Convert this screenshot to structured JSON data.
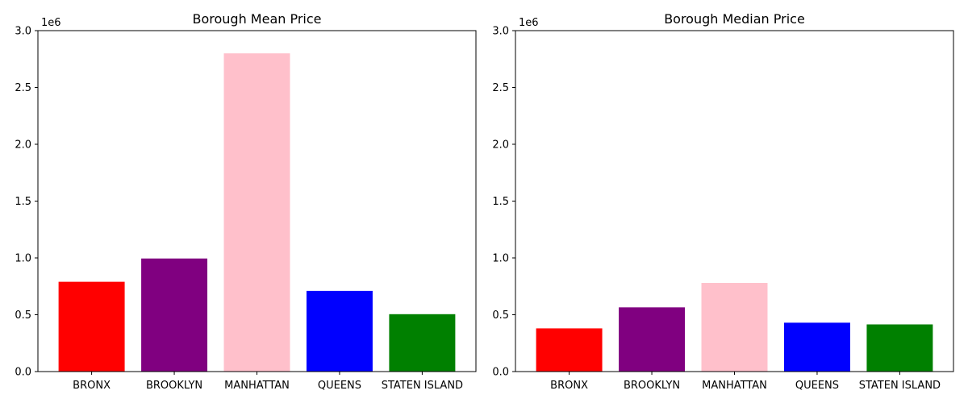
{
  "chart_data": [
    {
      "type": "bar",
      "title": "Borough Mean Price",
      "scale_label": "1e6",
      "categories": [
        "BRONX",
        "BROOKLYN",
        "MANHATTAN",
        "QUEENS",
        "STATEN ISLAND"
      ],
      "values": [
        790000,
        995000,
        2800000,
        710000,
        505000
      ],
      "colors": [
        "#ff0000",
        "#800080",
        "#ffc0cb",
        "#0000ff",
        "#008000"
      ],
      "ylim": [
        0,
        3000000
      ],
      "yticks": [
        {
          "value": 0,
          "label": "0.0"
        },
        {
          "value": 500000,
          "label": "0.5"
        },
        {
          "value": 1000000,
          "label": "1.0"
        },
        {
          "value": 1500000,
          "label": "1.5"
        },
        {
          "value": 2000000,
          "label": "2.0"
        },
        {
          "value": 2500000,
          "label": "2.5"
        },
        {
          "value": 3000000,
          "label": "3.0"
        }
      ],
      "grid": false
    },
    {
      "type": "bar",
      "title": "Borough Median Price",
      "scale_label": "1e6",
      "categories": [
        "BRONX",
        "BROOKLYN",
        "MANHATTAN",
        "QUEENS",
        "STATEN ISLAND"
      ],
      "values": [
        380000,
        565000,
        780000,
        430000,
        415000
      ],
      "colors": [
        "#ff0000",
        "#800080",
        "#ffc0cb",
        "#0000ff",
        "#008000"
      ],
      "ylim": [
        0,
        3000000
      ],
      "yticks": [
        {
          "value": 0,
          "label": "0.0"
        },
        {
          "value": 500000,
          "label": "0.5"
        },
        {
          "value": 1000000,
          "label": "1.0"
        },
        {
          "value": 1500000,
          "label": "1.5"
        },
        {
          "value": 2000000,
          "label": "2.0"
        },
        {
          "value": 2500000,
          "label": "2.5"
        },
        {
          "value": 3000000,
          "label": "3.0"
        }
      ],
      "grid": false
    }
  ]
}
